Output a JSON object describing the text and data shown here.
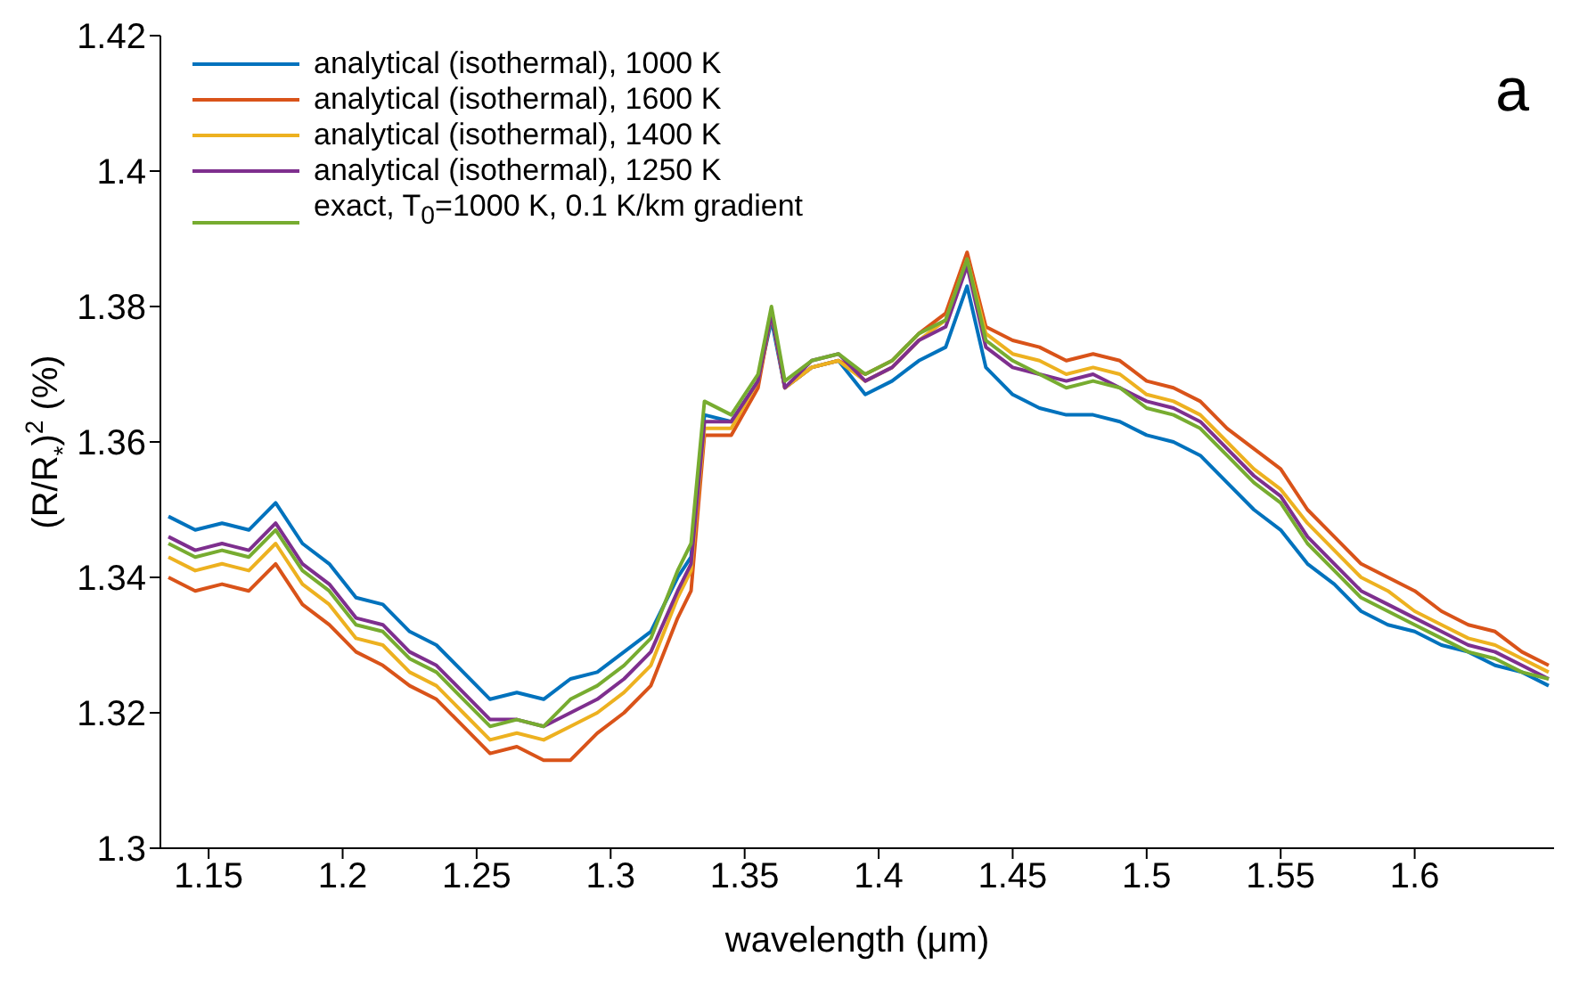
{
  "chart_data": {
    "type": "line",
    "xlabel": "wavelength (μm)",
    "ylabel": "(R/R$_{*}$)$^{2}$ (%)",
    "annotations": [
      "a"
    ],
    "x": [
      1.135,
      1.145,
      1.155,
      1.165,
      1.175,
      1.185,
      1.195,
      1.205,
      1.215,
      1.225,
      1.235,
      1.245,
      1.255,
      1.265,
      1.275,
      1.285,
      1.295,
      1.305,
      1.315,
      1.325,
      1.33,
      1.335,
      1.345,
      1.355,
      1.36,
      1.365,
      1.375,
      1.385,
      1.395,
      1.405,
      1.415,
      1.425,
      1.433,
      1.44,
      1.45,
      1.46,
      1.47,
      1.48,
      1.49,
      1.5,
      1.51,
      1.52,
      1.53,
      1.54,
      1.55,
      1.56,
      1.57,
      1.58,
      1.59,
      1.6,
      1.61,
      1.62,
      1.63,
      1.64,
      1.65
    ],
    "series": [
      {
        "name": "analytical (isothermal), 1000 K",
        "color": "#0072bd",
        "values": [
          1.349,
          1.347,
          1.348,
          1.347,
          1.351,
          1.345,
          1.342,
          1.337,
          1.336,
          1.332,
          1.33,
          1.326,
          1.322,
          1.323,
          1.322,
          1.325,
          1.326,
          1.329,
          1.332,
          1.34,
          1.343,
          1.364,
          1.363,
          1.369,
          1.378,
          1.368,
          1.371,
          1.372,
          1.367,
          1.369,
          1.372,
          1.374,
          1.383,
          1.371,
          1.367,
          1.365,
          1.364,
          1.364,
          1.363,
          1.361,
          1.36,
          1.358,
          1.354,
          1.35,
          1.347,
          1.342,
          1.339,
          1.335,
          1.333,
          1.332,
          1.33,
          1.329,
          1.327,
          1.326,
          1.324
        ]
      },
      {
        "name": "analytical (isothermal), 1600 K",
        "color": "#d95319",
        "values": [
          1.34,
          1.338,
          1.339,
          1.338,
          1.342,
          1.336,
          1.333,
          1.329,
          1.327,
          1.324,
          1.322,
          1.318,
          1.314,
          1.315,
          1.313,
          1.313,
          1.317,
          1.32,
          1.324,
          1.334,
          1.338,
          1.361,
          1.361,
          1.368,
          1.379,
          1.368,
          1.371,
          1.372,
          1.37,
          1.372,
          1.376,
          1.379,
          1.388,
          1.377,
          1.375,
          1.374,
          1.372,
          1.373,
          1.372,
          1.369,
          1.368,
          1.366,
          1.362,
          1.359,
          1.356,
          1.35,
          1.346,
          1.342,
          1.34,
          1.338,
          1.335,
          1.333,
          1.332,
          1.329,
          1.327
        ]
      },
      {
        "name": "analytical (isothermal), 1400 K",
        "color": "#edb120",
        "values": [
          1.343,
          1.341,
          1.342,
          1.341,
          1.345,
          1.339,
          1.336,
          1.331,
          1.33,
          1.326,
          1.324,
          1.32,
          1.316,
          1.317,
          1.316,
          1.318,
          1.32,
          1.323,
          1.327,
          1.337,
          1.341,
          1.362,
          1.362,
          1.369,
          1.379,
          1.368,
          1.371,
          1.372,
          1.369,
          1.371,
          1.375,
          1.378,
          1.387,
          1.376,
          1.373,
          1.372,
          1.37,
          1.371,
          1.37,
          1.367,
          1.366,
          1.364,
          1.36,
          1.356,
          1.353,
          1.348,
          1.344,
          1.34,
          1.338,
          1.335,
          1.333,
          1.331,
          1.33,
          1.328,
          1.326
        ]
      },
      {
        "name": "analytical (isothermal), 1250 K",
        "color": "#7e2f8e",
        "values": [
          1.346,
          1.344,
          1.345,
          1.344,
          1.348,
          1.342,
          1.339,
          1.334,
          1.333,
          1.329,
          1.327,
          1.323,
          1.319,
          1.319,
          1.318,
          1.32,
          1.322,
          1.325,
          1.329,
          1.338,
          1.342,
          1.363,
          1.363,
          1.369,
          1.379,
          1.368,
          1.372,
          1.373,
          1.369,
          1.371,
          1.375,
          1.377,
          1.386,
          1.374,
          1.371,
          1.37,
          1.369,
          1.37,
          1.368,
          1.366,
          1.365,
          1.363,
          1.359,
          1.355,
          1.352,
          1.346,
          1.342,
          1.338,
          1.336,
          1.334,
          1.332,
          1.33,
          1.329,
          1.327,
          1.325
        ]
      },
      {
        "name": "exact, T$_{0}$=1000 K, 0.1 K/km gradient",
        "color": "#77ac30",
        "values": [
          1.345,
          1.343,
          1.344,
          1.343,
          1.347,
          1.341,
          1.338,
          1.333,
          1.332,
          1.328,
          1.326,
          1.322,
          1.318,
          1.319,
          1.318,
          1.322,
          1.324,
          1.327,
          1.331,
          1.341,
          1.345,
          1.366,
          1.364,
          1.37,
          1.38,
          1.369,
          1.372,
          1.373,
          1.37,
          1.372,
          1.376,
          1.378,
          1.387,
          1.375,
          1.372,
          1.37,
          1.368,
          1.369,
          1.368,
          1.365,
          1.364,
          1.362,
          1.358,
          1.354,
          1.351,
          1.345,
          1.341,
          1.337,
          1.335,
          1.333,
          1.331,
          1.329,
          1.328,
          1.326,
          1.325
        ]
      }
    ],
    "xlim": [
      1.132,
      1.652
    ],
    "xticks": [
      1.15,
      1.2,
      1.25,
      1.3,
      1.35,
      1.4,
      1.45,
      1.5,
      1.55,
      1.6
    ],
    "ylim": [
      1.3,
      1.42
    ],
    "yticks": [
      1.3,
      1.32,
      1.34,
      1.36,
      1.38,
      1.4,
      1.42
    ],
    "grid": false,
    "legend": "top left",
    "marker": "none",
    "line_style": "solid"
  }
}
